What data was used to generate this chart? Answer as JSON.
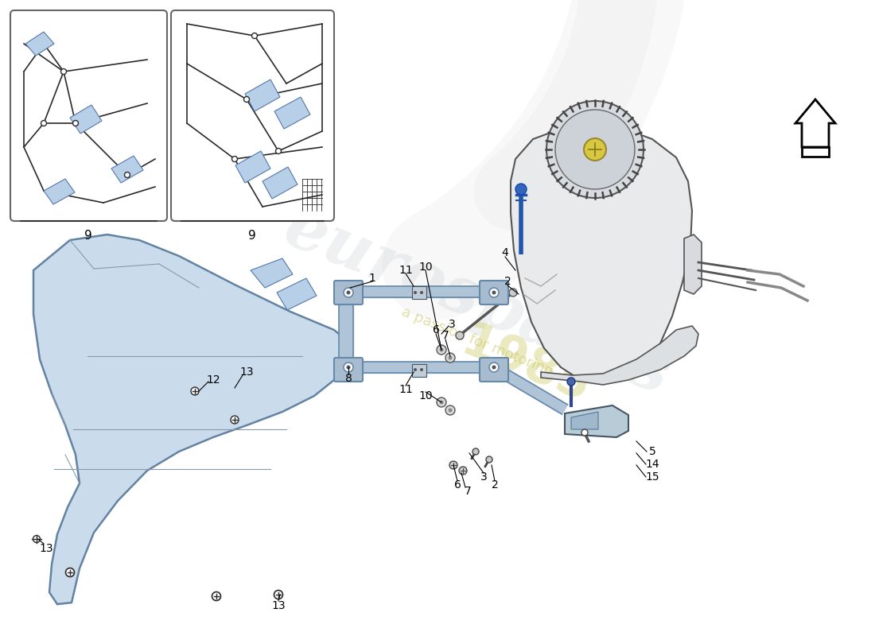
{
  "bg_color": "#ffffff",
  "line_color": "#2a2a2a",
  "blue_fill": "#b8cfe8",
  "blue_stroke": "#5577aa",
  "tank_fill": "#e8eaec",
  "guard_fill": "#c5d8ea",
  "strap_fill": "#b0c4d8",
  "strap_edge": "#6688aa",
  "bracket_fill": "#b8ccd8",
  "box_edge": "#666666",
  "label_fs": 10,
  "wm_color": "#c5cacf",
  "wm_alpha": 0.28,
  "year_color": "#d0cb65",
  "passion_color": "#c8c860"
}
